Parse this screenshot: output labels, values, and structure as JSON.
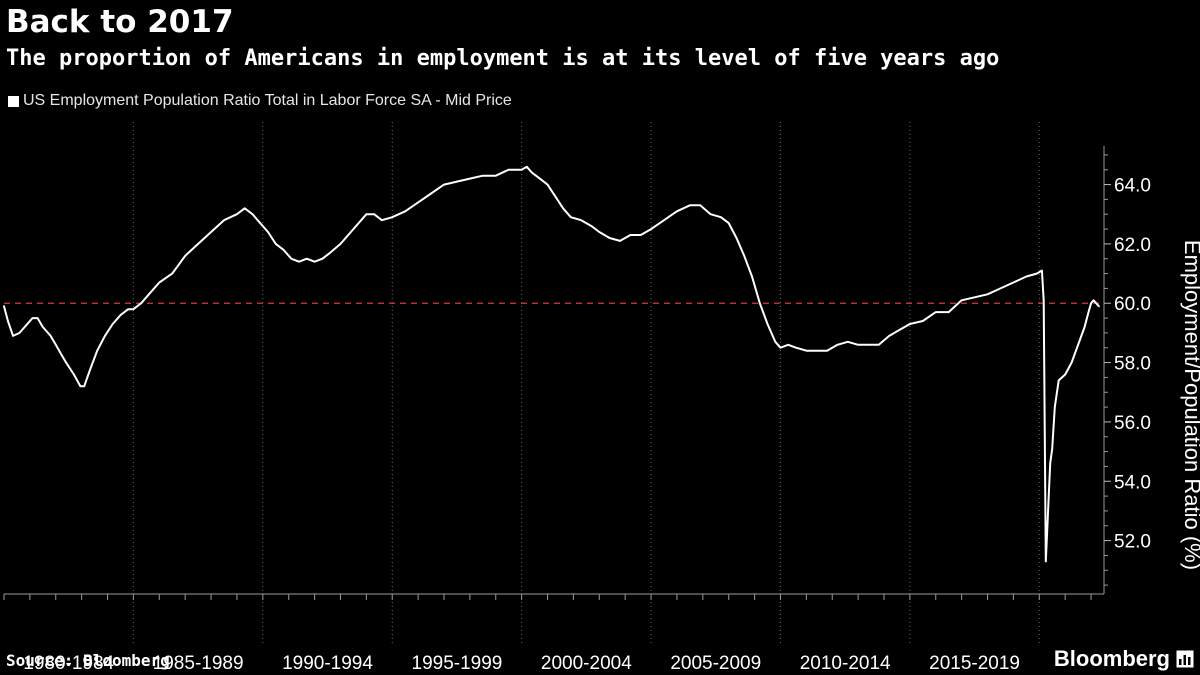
{
  "header": {
    "title": "Back to 2017",
    "subtitle": "The proportion of Americans in employment is at its level of five years ago"
  },
  "legend": {
    "label": "US Employment Population Ratio Total in Labor Force SA - Mid Price"
  },
  "footer": {
    "source": "Source: Bloomberg",
    "brand": "Bloomberg"
  },
  "colors": {
    "background": "#000000",
    "line": "#ffffff",
    "reference": "#d6393f",
    "grid": "#666666"
  },
  "chart_data": {
    "type": "line",
    "title": "Back to 2017",
    "subtitle": "The proportion of Americans in employment is at its level of five years ago",
    "xlabel": "",
    "ylabel": "Employment/Population Ratio (%)",
    "xlim": [
      1980,
      2022.5
    ],
    "ylim": [
      50.2,
      65.3
    ],
    "yticks": [
      52.0,
      54.0,
      56.0,
      58.0,
      60.0,
      62.0,
      64.0
    ],
    "ytick_labels": [
      "52.0",
      "54.0",
      "56.0",
      "58.0",
      "60.0",
      "62.0",
      "64.0"
    ],
    "ytick_side": "right",
    "x_category_labels": [
      {
        "label": "1980-1984",
        "start": 1980,
        "end": 1985
      },
      {
        "label": "1985-1989",
        "start": 1985,
        "end": 1990
      },
      {
        "label": "1990-1994",
        "start": 1990,
        "end": 1995
      },
      {
        "label": "1995-1999",
        "start": 1995,
        "end": 2000
      },
      {
        "label": "2000-2004",
        "start": 2000,
        "end": 2005
      },
      {
        "label": "2005-2009",
        "start": 2005,
        "end": 2010
      },
      {
        "label": "2010-2014",
        "start": 2010,
        "end": 2015
      },
      {
        "label": "2015-2019",
        "start": 2015,
        "end": 2020
      }
    ],
    "reference_line": {
      "y": 60.0,
      "style": "dashed"
    },
    "grid": "vertical dotted",
    "series": [
      {
        "name": "US Employment Population Ratio Total in Labor Force SA - Mid Price",
        "x": [
          1980.0,
          1980.15,
          1980.35,
          1980.6,
          1980.9,
          1981.1,
          1981.3,
          1981.5,
          1981.8,
          1982.0,
          1982.2,
          1982.4,
          1982.7,
          1982.95,
          1983.1,
          1983.3,
          1983.6,
          1983.9,
          1984.2,
          1984.5,
          1984.8,
          1985.0,
          1985.3,
          1985.6,
          1986.0,
          1986.5,
          1987.0,
          1987.5,
          1988.0,
          1988.5,
          1989.0,
          1989.3,
          1989.6,
          1989.9,
          1990.2,
          1990.5,
          1990.8,
          1991.1,
          1991.4,
          1991.7,
          1992.0,
          1992.3,
          1992.6,
          1993.0,
          1993.5,
          1994.0,
          1994.3,
          1994.6,
          1995.0,
          1995.5,
          1996.0,
          1996.5,
          1997.0,
          1997.5,
          1998.0,
          1998.5,
          1999.0,
          1999.5,
          2000.0,
          2000.2,
          2000.4,
          2000.7,
          2001.0,
          2001.3,
          2001.6,
          2001.9,
          2002.3,
          2002.7,
          2003.0,
          2003.4,
          2003.8,
          2004.2,
          2004.6,
          2005.0,
          2005.5,
          2006.0,
          2006.5,
          2006.9,
          2007.3,
          2007.7,
          2008.0,
          2008.3,
          2008.6,
          2008.9,
          2009.2,
          2009.5,
          2009.8,
          2010.0,
          2010.3,
          2010.6,
          2011.0,
          2011.4,
          2011.8,
          2012.2,
          2012.6,
          2013.0,
          2013.4,
          2013.8,
          2014.2,
          2014.6,
          2015.0,
          2015.5,
          2016.0,
          2016.5,
          2017.0,
          2017.5,
          2018.0,
          2018.5,
          2019.0,
          2019.5,
          2019.9,
          2020.1,
          2020.17,
          2020.25,
          2020.33,
          2020.42,
          2020.5,
          2020.6,
          2020.75,
          2021.0,
          2021.25,
          2021.5,
          2021.75,
          2021.9,
          2022.0,
          2022.1,
          2022.2,
          2022.3
        ],
        "y": [
          59.9,
          59.4,
          58.9,
          59.0,
          59.3,
          59.5,
          59.5,
          59.2,
          58.9,
          58.6,
          58.3,
          58.0,
          57.6,
          57.2,
          57.2,
          57.7,
          58.4,
          58.9,
          59.3,
          59.6,
          59.8,
          59.8,
          60.0,
          60.3,
          60.7,
          61.0,
          61.6,
          62.0,
          62.4,
          62.8,
          63.0,
          63.2,
          63.0,
          62.7,
          62.4,
          62.0,
          61.8,
          61.5,
          61.4,
          61.5,
          61.4,
          61.5,
          61.7,
          62.0,
          62.5,
          63.0,
          63.0,
          62.8,
          62.9,
          63.1,
          63.4,
          63.7,
          64.0,
          64.1,
          64.2,
          64.3,
          64.3,
          64.5,
          64.5,
          64.6,
          64.4,
          64.2,
          64.0,
          63.6,
          63.2,
          62.9,
          62.8,
          62.6,
          62.4,
          62.2,
          62.1,
          62.3,
          62.3,
          62.5,
          62.8,
          63.1,
          63.3,
          63.3,
          63.0,
          62.9,
          62.7,
          62.2,
          61.6,
          60.9,
          60.0,
          59.3,
          58.7,
          58.5,
          58.6,
          58.5,
          58.4,
          58.4,
          58.4,
          58.6,
          58.7,
          58.6,
          58.6,
          58.6,
          58.9,
          59.1,
          59.3,
          59.4,
          59.7,
          59.7,
          60.1,
          60.2,
          60.3,
          60.5,
          60.7,
          60.9,
          61.0,
          61.1,
          60.1,
          51.3,
          52.8,
          54.6,
          55.1,
          56.5,
          57.4,
          57.6,
          58.0,
          58.6,
          59.2,
          59.7,
          60.0,
          60.1,
          60.0,
          59.9
        ]
      }
    ]
  }
}
